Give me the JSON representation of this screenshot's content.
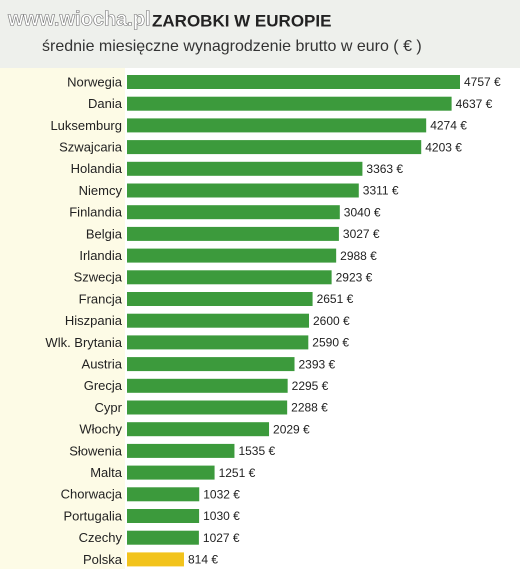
{
  "chart_data": {
    "type": "bar",
    "orientation": "horizontal",
    "watermark": "www.wiocha.pl",
    "title": "ZAROBKI W EUROPIE",
    "subtitle": "średnie miesięczne wynagrodzenie brutto w euro ( € )",
    "categories": [
      "Norwegia",
      "Dania",
      "Luksemburg",
      "Szwajcaria",
      "Holandia",
      "Niemcy",
      "Finlandia",
      "Belgia",
      "Irlandia",
      "Szwecja",
      "Francja",
      "Hiszpania",
      "Wlk. Brytania",
      "Austria",
      "Grecja",
      "Cypr",
      "Włochy",
      "Słowenia",
      "Malta",
      "Chorwacja",
      "Portugalia",
      "Czechy",
      "Polska"
    ],
    "values": [
      4757,
      4637,
      4274,
      4203,
      3363,
      3311,
      3040,
      3027,
      2988,
      2923,
      2651,
      2600,
      2590,
      2393,
      2295,
      2288,
      2029,
      1535,
      1251,
      1032,
      1030,
      1027,
      814
    ],
    "value_labels": [
      "4757 €",
      "4637 €",
      "4274 €",
      "4203 €",
      "3363 €",
      "3311 €",
      "3040 €",
      "3027 €",
      "2988 €",
      "2923 €",
      "2651 €",
      "2600 €",
      "2590 €",
      "2393 €",
      "2295 €",
      "2288 €",
      "2029 €",
      "1535 €",
      "1251 €",
      "1032 €",
      "1030 €",
      "1027 €",
      "814 €"
    ],
    "colors": [
      "#3c9a3c",
      "#3c9a3c",
      "#3c9a3c",
      "#3c9a3c",
      "#3c9a3c",
      "#3c9a3c",
      "#3c9a3c",
      "#3c9a3c",
      "#3c9a3c",
      "#3c9a3c",
      "#3c9a3c",
      "#3c9a3c",
      "#3c9a3c",
      "#3c9a3c",
      "#3c9a3c",
      "#3c9a3c",
      "#3c9a3c",
      "#3c9a3c",
      "#3c9a3c",
      "#3c9a3c",
      "#3c9a3c",
      "#3c9a3c",
      "#f2c31c"
    ]
  }
}
